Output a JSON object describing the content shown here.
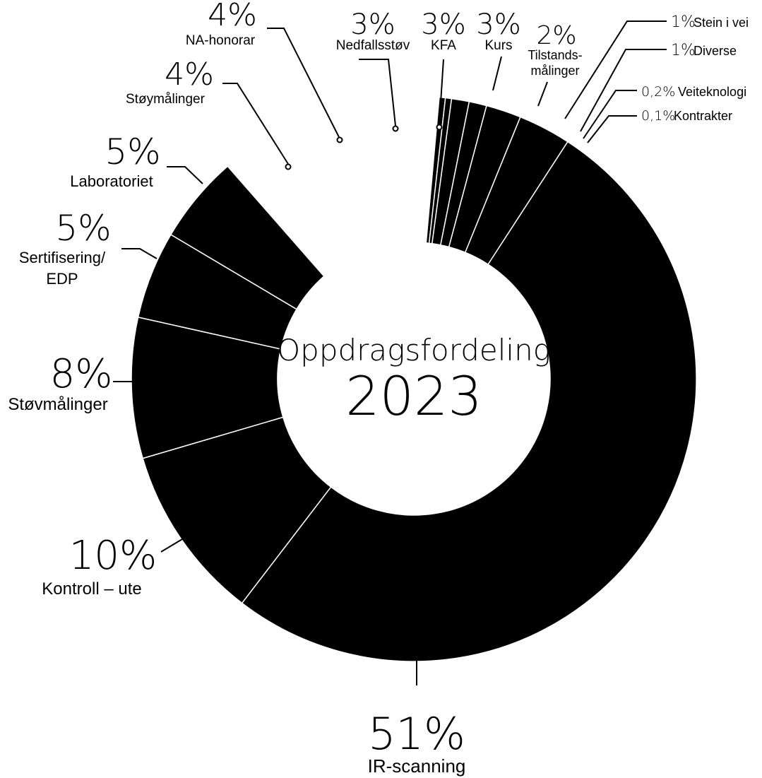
{
  "chart_data": {
    "type": "pie",
    "style": "donut",
    "center_title": "Oppdragsfordeling",
    "center_year": "2023",
    "colors": {
      "slice": "#000000",
      "separator": "#ffffff",
      "text": "#000000"
    },
    "slices": [
      {
        "label": "IR-scanning",
        "value": 51,
        "value_label": "51%"
      },
      {
        "label": "Kontroll – ute",
        "value": 10,
        "value_label": "10%"
      },
      {
        "label": "Støvmålinger",
        "value": 8,
        "value_label": "8%"
      },
      {
        "label": "Sertifisering/ EDP",
        "value": 5,
        "value_label": "5%"
      },
      {
        "label": "Laboratoriet",
        "value": 5,
        "value_label": "5%"
      },
      {
        "label": "Støymålinger",
        "value": 4,
        "value_label": "4%"
      },
      {
        "label": "NA-honorar",
        "value": 4,
        "value_label": "4%"
      },
      {
        "label": "Nedfallsstøv",
        "value": 3,
        "value_label": "3%"
      },
      {
        "label": "KFA",
        "value": 3,
        "value_label": "3%"
      },
      {
        "label": "Kurs",
        "value": 3,
        "value_label": "3%"
      },
      {
        "label": "Tilstands- målinger",
        "value": 2,
        "value_label": "2%"
      },
      {
        "label": "Stein i vei",
        "value": 1,
        "value_label": "1%"
      },
      {
        "label": "Diverse",
        "value": 1,
        "value_label": "1%"
      },
      {
        "label": "Veiteknologi",
        "value": 0.2,
        "value_label": "0,2%"
      },
      {
        "label": "Kontrakter",
        "value": 0.1,
        "value_label": "0,1%"
      }
    ]
  }
}
